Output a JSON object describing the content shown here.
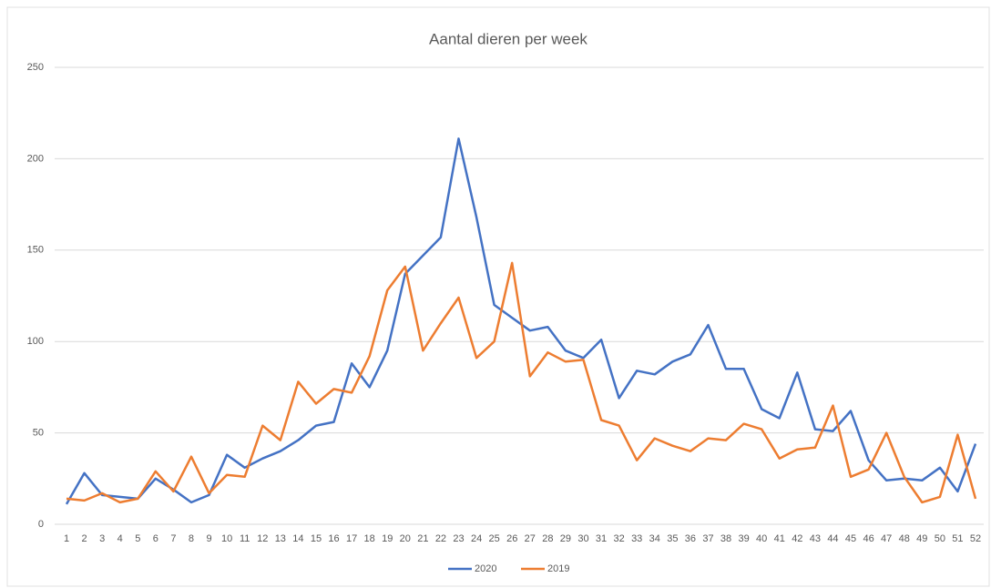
{
  "chart_data": {
    "type": "line",
    "title": "Aantal dieren per week",
    "categories": [
      "1",
      "2",
      "3",
      "4",
      "5",
      "6",
      "7",
      "8",
      "9",
      "10",
      "11",
      "12",
      "13",
      "14",
      "15",
      "16",
      "17",
      "18",
      "19",
      "20",
      "21",
      "22",
      "23",
      "24",
      "25",
      "26",
      "27",
      "28",
      "29",
      "30",
      "31",
      "32",
      "33",
      "34",
      "35",
      "36",
      "37",
      "38",
      "39",
      "40",
      "41",
      "42",
      "43",
      "44",
      "45",
      "46",
      "47",
      "48",
      "49",
      "50",
      "51",
      "52"
    ],
    "series": [
      {
        "name": "2020",
        "color": "#4472c4",
        "values": [
          11,
          28,
          16,
          15,
          14,
          25,
          19,
          12,
          16,
          38,
          31,
          36,
          40,
          46,
          54,
          56,
          88,
          75,
          95,
          137,
          147,
          157,
          211,
          168,
          120,
          113,
          106,
          108,
          95,
          91,
          101,
          69,
          84,
          82,
          89,
          93,
          109,
          85,
          85,
          63,
          58,
          83,
          52,
          51,
          62,
          35,
          24,
          25,
          24,
          31,
          18,
          44
        ]
      },
      {
        "name": "2019",
        "color": "#ed7d31",
        "values": [
          14,
          13,
          17,
          12,
          14,
          29,
          18,
          37,
          17,
          27,
          26,
          54,
          46,
          78,
          66,
          74,
          72,
          92,
          128,
          141,
          95,
          110,
          124,
          91,
          100,
          143,
          81,
          94,
          89,
          90,
          57,
          54,
          35,
          47,
          43,
          40,
          47,
          46,
          55,
          52,
          36,
          41,
          42,
          65,
          26,
          30,
          50,
          26,
          12,
          15,
          49,
          14
        ]
      }
    ],
    "ylim": [
      0,
      250
    ],
    "yticks": [
      0,
      50,
      100,
      150,
      200,
      250
    ],
    "grid": true,
    "legend": "bottom"
  }
}
